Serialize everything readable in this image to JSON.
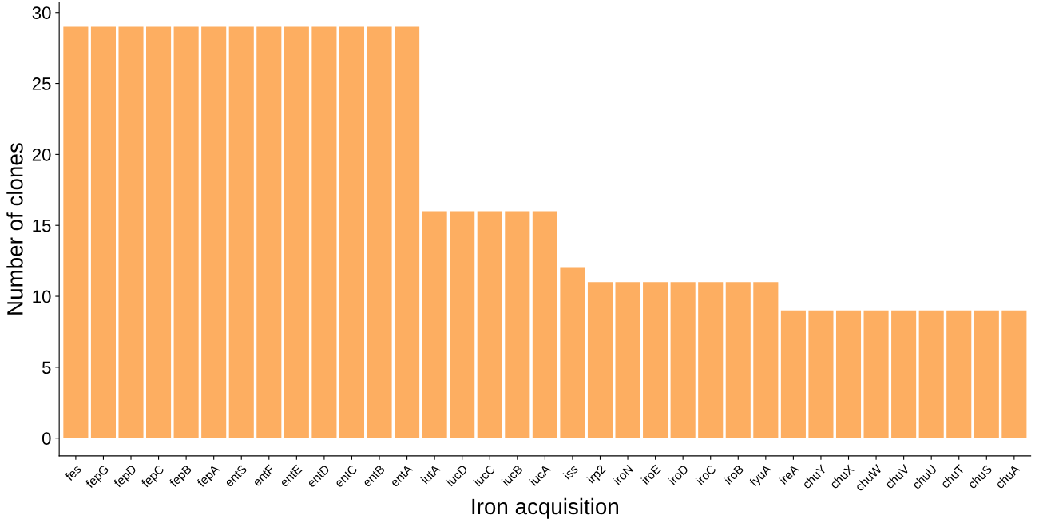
{
  "chart_data": {
    "type": "bar",
    "xlabel": "Iron acquisition",
    "ylabel": "Number of clones",
    "categories": [
      "fes",
      "fepG",
      "fepD",
      "fepC",
      "fepB",
      "fepA",
      "entS",
      "entF",
      "entE",
      "entD",
      "entC",
      "entB",
      "entA",
      "iutA",
      "iucD",
      "iucC",
      "iucB",
      "iucA",
      "iss",
      "irp2",
      "iroN",
      "iroE",
      "iroD",
      "iroC",
      "iroB",
      "fyuA",
      "ireA",
      "chuY",
      "chuX",
      "chuW",
      "chuV",
      "chuU",
      "chuT",
      "chuS",
      "chuA"
    ],
    "values": [
      29,
      29,
      29,
      29,
      29,
      29,
      29,
      29,
      29,
      29,
      29,
      29,
      29,
      16,
      16,
      16,
      16,
      16,
      12,
      11,
      11,
      11,
      11,
      11,
      11,
      11,
      9,
      9,
      9,
      9,
      9,
      9,
      9,
      9,
      9
    ],
    "color": "#fdae61",
    "ylim": [
      -1.25,
      30.7
    ],
    "yticks": [
      0,
      5,
      10,
      15,
      20,
      25,
      30
    ],
    "grid": false,
    "legend": false
  }
}
